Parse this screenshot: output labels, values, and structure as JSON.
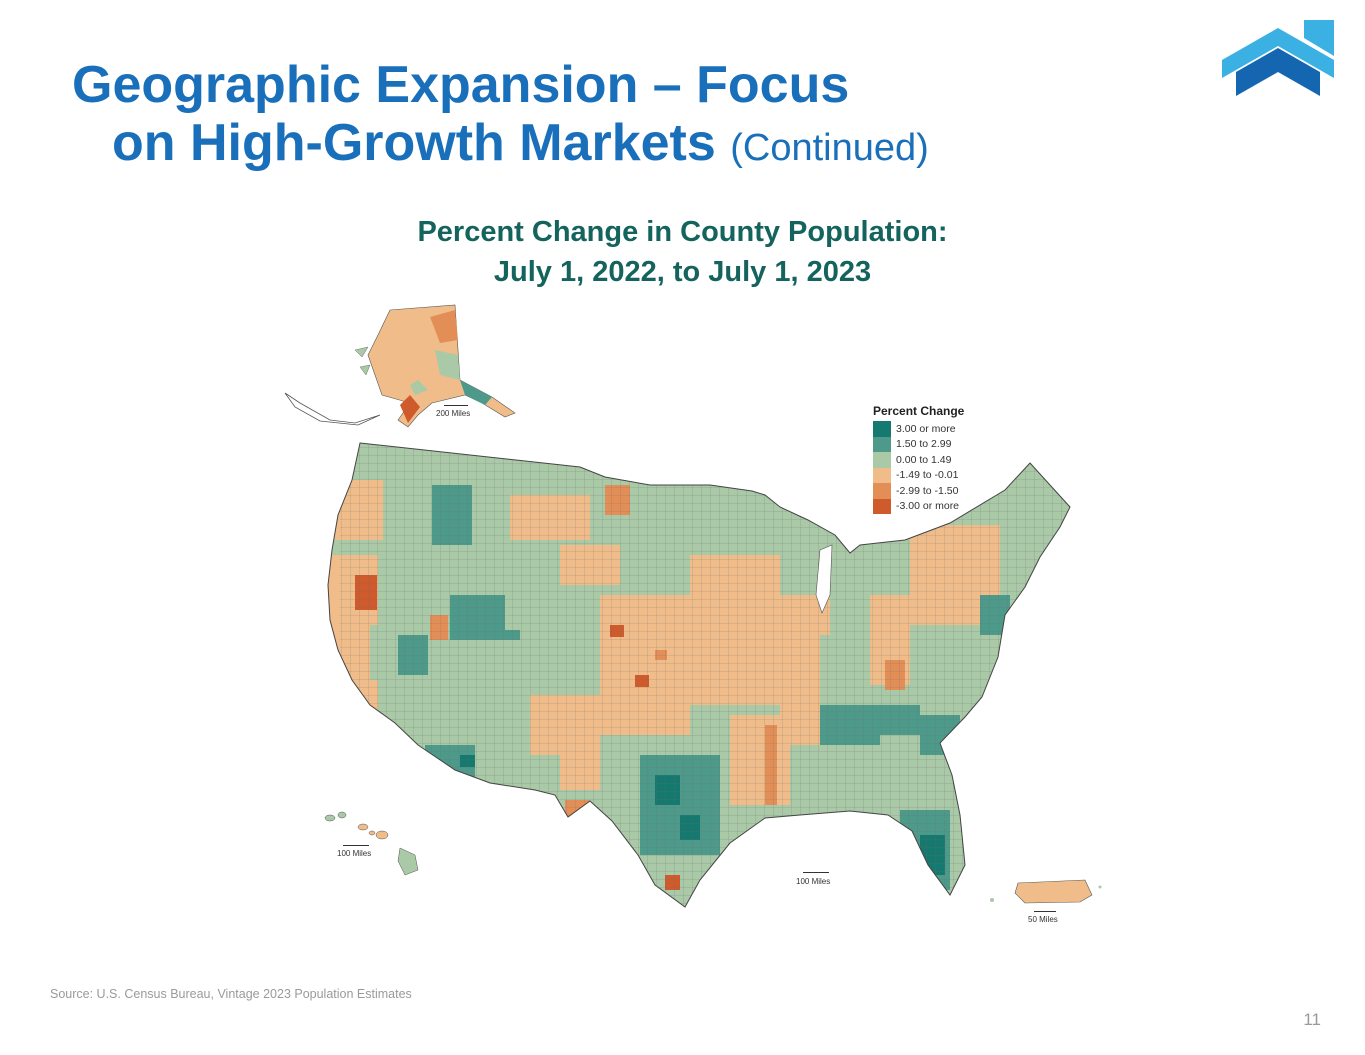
{
  "slide": {
    "title_line1": "Geographic Expansion – Focus",
    "title_line2": "on High-Growth Markets",
    "title_suffix": "(Continued)",
    "source": "Source: U.S. Census Bureau, Vintage 2023 Population Estimates",
    "page_number": "11"
  },
  "map": {
    "title_line1": "Percent Change in County Population:",
    "title_line2": "July 1, 2022, to July 1, 2023",
    "scale_labels": {
      "alaska": "200 Miles",
      "hawaii": "100 Miles",
      "conus": "100 Miles",
      "puerto_rico": "50 Miles"
    },
    "legend": {
      "title": "Percent Change",
      "items": [
        {
          "label": "3.00 or more",
          "color": "#16796f"
        },
        {
          "label": "1.50 to 2.99",
          "color": "#4d9a8a"
        },
        {
          "label": "0.00 to 1.49",
          "color": "#a9c9a7"
        },
        {
          "label": "-1.49 to -0.01",
          "color": "#f0bd8a"
        },
        {
          "label": "-2.99 to -1.50",
          "color": "#e38e56"
        },
        {
          "label": "-3.00 or more",
          "color": "#cf5a2c"
        }
      ]
    }
  },
  "colors": {
    "title_blue": "#1a6fba",
    "map_title": "#14635d",
    "logo_light": "#3ab0e3",
    "logo_dark": "#1466b0"
  }
}
